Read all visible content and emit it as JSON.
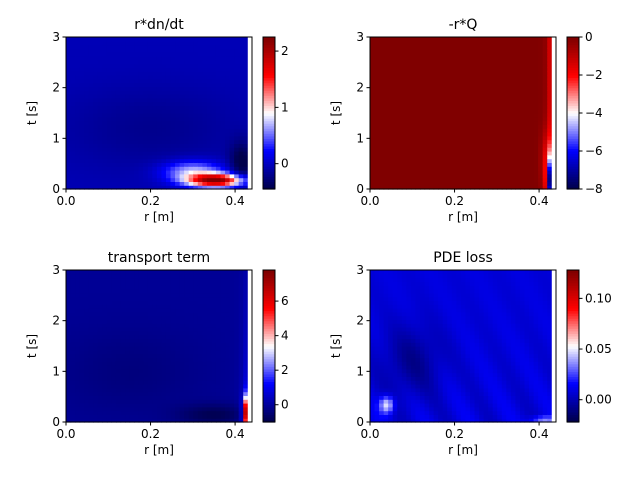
{
  "figure": {
    "background": "#ffffff"
  },
  "colormap": {
    "name": "seismic",
    "stops": [
      "#00004c",
      "#0000ff",
      "#ffffff",
      "#ff0000",
      "#800000"
    ]
  },
  "chart_data": [
    {
      "type": "heatmap",
      "title": "r*dn/dt",
      "xlabel": "r [m]",
      "ylabel": "t [s]",
      "xlim": [
        0.0,
        0.44
      ],
      "ylim": [
        0,
        3
      ],
      "xticks": [
        "0.0",
        "0.2",
        "0.4"
      ],
      "xtick_values": [
        0.0,
        0.2,
        0.4
      ],
      "yticks": [
        "0",
        "1",
        "2",
        "3"
      ],
      "ytick_values": [
        0,
        1,
        2,
        3
      ],
      "data_rmax": 0.43,
      "vmin": -0.45,
      "vmax": 2.25,
      "cbar_ticks": [
        "0",
        "1",
        "2"
      ],
      "cbar_tick_values": [
        0,
        1,
        2
      ],
      "field": "dndt"
    },
    {
      "type": "heatmap",
      "title": "-r*Q",
      "xlabel": "r [m]",
      "ylabel": "t [s]",
      "xlim": [
        0.0,
        0.44
      ],
      "ylim": [
        0,
        3
      ],
      "xticks": [
        "0.0",
        "0.2",
        "0.4"
      ],
      "xtick_values": [
        0.0,
        0.2,
        0.4
      ],
      "yticks": [
        "0",
        "1",
        "2",
        "3"
      ],
      "ytick_values": [
        0,
        1,
        2,
        3
      ],
      "data_rmax": 0.43,
      "vmin": -8,
      "vmax": 0,
      "cbar_ticks": [
        "0",
        "−2",
        "−4",
        "−6",
        "−8"
      ],
      "cbar_tick_values": [
        0,
        -2,
        -4,
        -6,
        -8
      ],
      "field": "rQ"
    },
    {
      "type": "heatmap",
      "title": "transport term",
      "xlabel": "r [m]",
      "ylabel": "t [s]",
      "xlim": [
        0.0,
        0.44
      ],
      "ylim": [
        0,
        3
      ],
      "xticks": [
        "0.0",
        "0.2",
        "0.4"
      ],
      "xtick_values": [
        0.0,
        0.2,
        0.4
      ],
      "yticks": [
        "0",
        "1",
        "2",
        "3"
      ],
      "ytick_values": [
        0,
        1,
        2,
        3
      ],
      "data_rmax": 0.43,
      "vmin": -1.0,
      "vmax": 7.8,
      "cbar_ticks": [
        "0",
        "2",
        "4",
        "6"
      ],
      "cbar_tick_values": [
        0,
        2,
        4,
        6
      ],
      "field": "transport"
    },
    {
      "type": "heatmap",
      "title": "PDE loss",
      "xlabel": "r [m]",
      "ylabel": "t [s]",
      "xlim": [
        0.0,
        0.44
      ],
      "ylim": [
        0,
        3
      ],
      "xticks": [
        "0.0",
        "0.2",
        "0.4"
      ],
      "xtick_values": [
        0.0,
        0.2,
        0.4
      ],
      "yticks": [
        "0",
        "1",
        "2",
        "3"
      ],
      "ytick_values": [
        0,
        1,
        2,
        3
      ],
      "data_rmax": 0.43,
      "vmin": -0.022,
      "vmax": 0.128,
      "cbar_ticks": [
        "0.10",
        "0.05",
        "0.00"
      ],
      "cbar_tick_values": [
        0.1,
        0.05,
        0.0
      ],
      "field": "loss"
    }
  ]
}
